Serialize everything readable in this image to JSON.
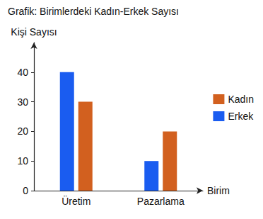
{
  "chart_data": {
    "type": "bar",
    "title": "Grafik: Birimlerdeki Kadın-Erkek Sayısı",
    "y_label": "Kişi Sayısı",
    "x_label": "Birim",
    "categories": [
      "Üretim",
      "Pazarlama"
    ],
    "series": [
      {
        "name": "Erkek",
        "color": "#1a5cf0",
        "values": [
          40,
          10
        ]
      },
      {
        "name": "Kadın",
        "color": "#d2601f",
        "values": [
          30,
          20
        ]
      }
    ],
    "ylim": [
      0,
      50
    ],
    "yticks": [
      0,
      10,
      20,
      30,
      40
    ],
    "grid": false,
    "legend": "right"
  }
}
